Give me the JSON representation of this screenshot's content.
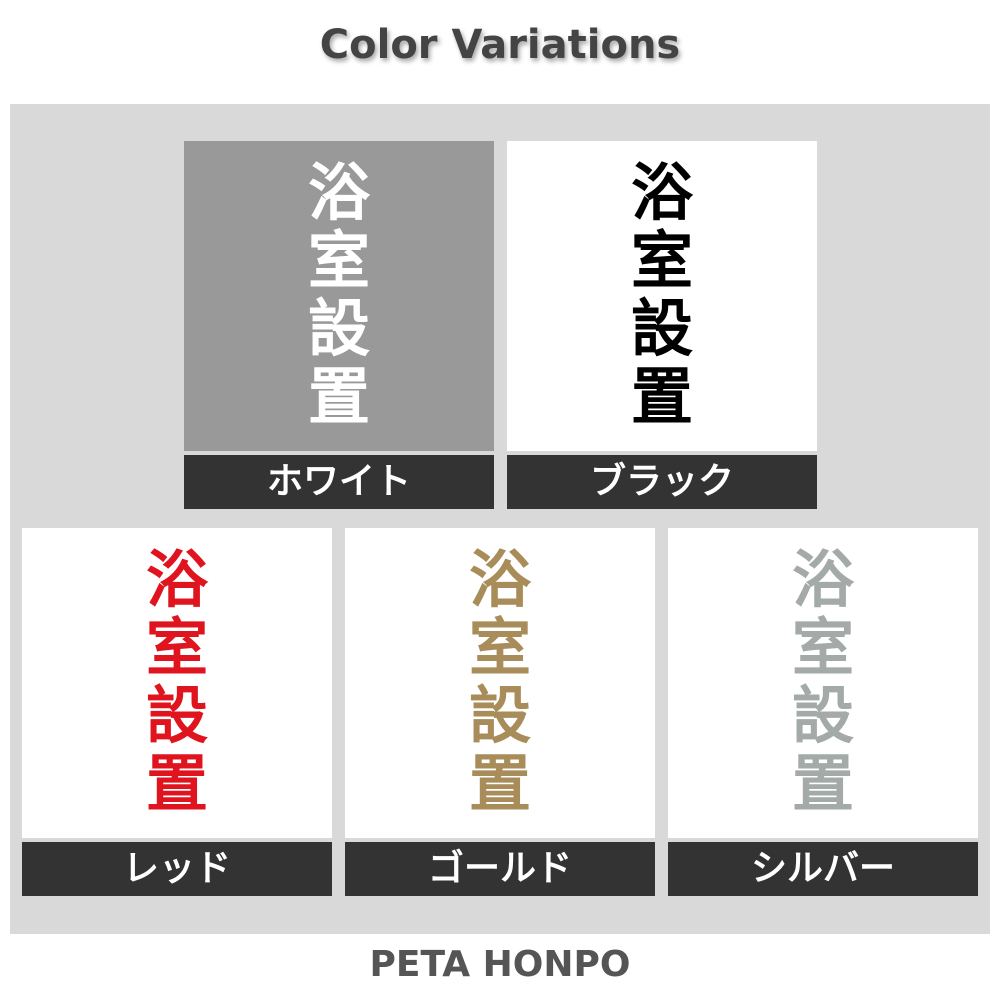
{
  "title": "Color Variations",
  "sign_text": [
    "浴",
    "室",
    "設",
    "置"
  ],
  "variants": [
    {
      "label": "ホワイト",
      "text_color": "#ffffff",
      "plate_color": "#999999"
    },
    {
      "label": "ブラック",
      "text_color": "#000000",
      "plate_color": "#ffffff"
    },
    {
      "label": "レッド",
      "text_color": "#e0141e",
      "plate_color": "#ffffff"
    },
    {
      "label": "ゴールド",
      "text_color": "#a88c5a",
      "plate_color": "#ffffff"
    },
    {
      "label": "シルバー",
      "text_color": "#a3aaa8",
      "plate_color": "#ffffff"
    }
  ],
  "footer": "PETA HONPO"
}
